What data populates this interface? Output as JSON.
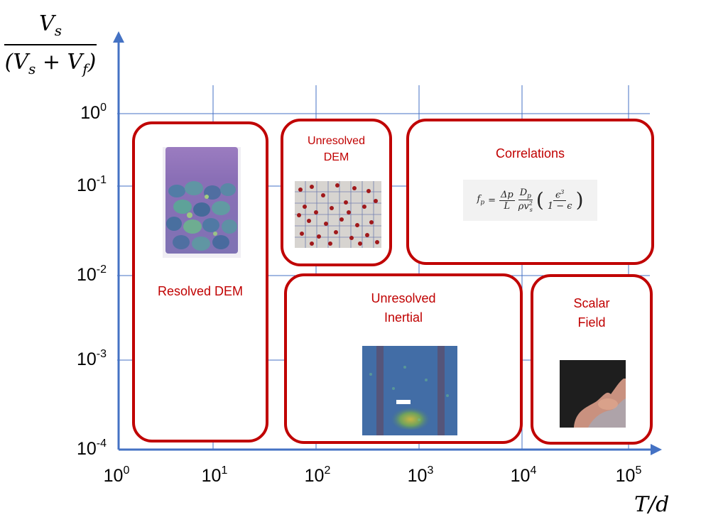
{
  "y_axis": {
    "title_numerator": "V",
    "title_numerator_sub": "s",
    "title_denominator_open": "(V",
    "title_denominator_sub1": "s",
    "title_denominator_plus": " + V",
    "title_denominator_sub2": "f",
    "title_denominator_close": ")",
    "ticks": [
      {
        "base": "10",
        "exp": "0"
      },
      {
        "base": "10",
        "exp": "-1"
      },
      {
        "base": "10",
        "exp": "-2"
      },
      {
        "base": "10",
        "exp": "-3"
      },
      {
        "base": "10",
        "exp": "-4"
      }
    ]
  },
  "x_axis": {
    "title": "T/d",
    "ticks": [
      {
        "base": "10",
        "exp": "0"
      },
      {
        "base": "10",
        "exp": "1"
      },
      {
        "base": "10",
        "exp": "2"
      },
      {
        "base": "10",
        "exp": "3"
      },
      {
        "base": "10",
        "exp": "4"
      },
      {
        "base": "10",
        "exp": "5"
      }
    ]
  },
  "regions": {
    "resolved_dem": {
      "label": "Resolved DEM"
    },
    "unresolved_dem": {
      "label": "Unresolved\nDEM"
    },
    "correlations": {
      "label": "Correlations"
    },
    "unresolved_inertial": {
      "label": "Unresolved\nInertial"
    },
    "scalar_field": {
      "label": "Scalar\nField"
    }
  },
  "equation": {
    "lhs": "f",
    "lhs_sub": "p",
    "equals": "=",
    "frac1_num": "Δp",
    "frac1_den": "L",
    "frac2_num": "D",
    "frac2_num_sub": "p",
    "frac2_den": "ρv",
    "frac2_den_sup": "2",
    "frac2_den_sub": "s",
    "frac3_num": "ϵ",
    "frac3_num_sup": "3",
    "frac3_den": "1 − ϵ"
  },
  "colors": {
    "axis": "#4472c4",
    "grid": "#4472c4",
    "region_border": "#c00000",
    "region_label": "#c00000"
  }
}
